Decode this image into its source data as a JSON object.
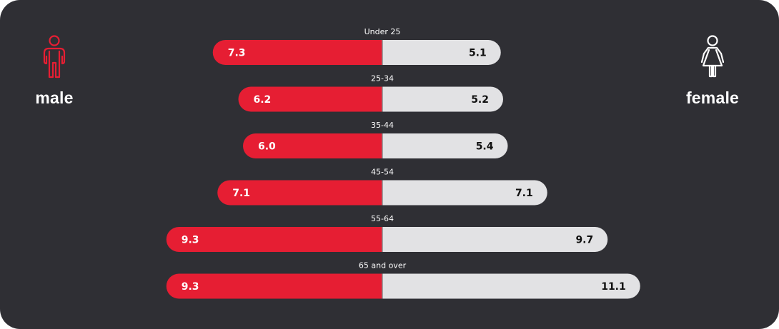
{
  "colors": {
    "background": "#2f2f34",
    "male": "#e61e33",
    "female": "#e2e2e4",
    "male_value_text": "#ffffff",
    "female_value_text": "#111111",
    "label_text": "#ffffff",
    "divider": "#8c8c8c"
  },
  "legend": {
    "male_label": "male",
    "female_label": "female",
    "male_icon": "male-person-icon",
    "female_icon": "female-person-icon"
  },
  "chart_data": {
    "type": "bar",
    "orientation": "horizontal-diverging",
    "categories": [
      "Under 25",
      "25-34",
      "35-44",
      "45-54",
      "55-64",
      "65 and over"
    ],
    "series": [
      {
        "name": "male",
        "values": [
          7.3,
          6.2,
          6.0,
          7.1,
          9.3,
          9.3
        ],
        "labels": [
          "7.3",
          "6.2",
          "6.0",
          "7.1",
          "9.3",
          "9.3"
        ]
      },
      {
        "name": "female",
        "values": [
          5.1,
          5.2,
          5.4,
          7.1,
          9.7,
          11.1
        ],
        "labels": [
          "5.1",
          "5.2",
          "5.4",
          "7.1",
          "9.7",
          "11.1"
        ]
      }
    ],
    "grid": false,
    "legend_placement": "left and right sides"
  }
}
